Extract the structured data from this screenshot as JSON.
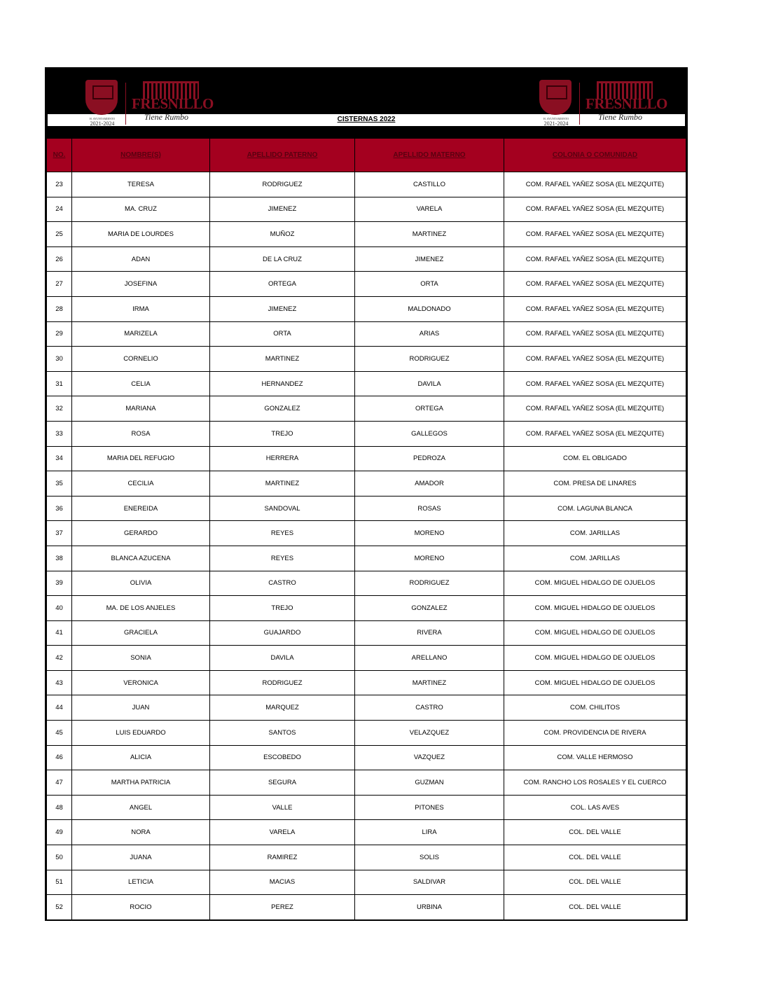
{
  "header": {
    "title": "CISTERNAS 2022",
    "logo_text": "FRESNILLO",
    "logo_tagline": "Tiene Rumbo",
    "logo_ayto": "H. AYUNTAMIENTO",
    "logo_years": "2021-2024",
    "colors": {
      "header_bg": "#000000",
      "column_header_bg": "#a4001f",
      "brand": "#8a0f22"
    }
  },
  "table": {
    "columns": [
      "NO.",
      "NOMBRE(S)",
      "APELLIDO PATERNO",
      "APELLIDO MATERNO",
      "COLONIA O COMUNIDAD"
    ],
    "rows": [
      [
        "23",
        "TERESA",
        "RODRIGUEZ",
        "CASTILLO",
        "COM. RAFAEL YAÑEZ SOSA (EL MEZQUITE)"
      ],
      [
        "24",
        "MA. CRUZ",
        "JIMENEZ",
        "VARELA",
        "COM. RAFAEL YAÑEZ SOSA (EL MEZQUITE)"
      ],
      [
        "25",
        "MARIA DE LOURDES",
        "MUÑOZ",
        "MARTINEZ",
        "COM. RAFAEL YAÑEZ SOSA (EL MEZQUITE)"
      ],
      [
        "26",
        "ADAN",
        "DE LA CRUZ",
        "JIMENEZ",
        "COM. RAFAEL YAÑEZ SOSA (EL MEZQUITE)"
      ],
      [
        "27",
        "JOSEFINA",
        "ORTEGA",
        "ORTA",
        "COM. RAFAEL YAÑEZ SOSA (EL MEZQUITE)"
      ],
      [
        "28",
        "IRMA",
        "JIMENEZ",
        "MALDONADO",
        "COM. RAFAEL YAÑEZ SOSA (EL MEZQUITE)"
      ],
      [
        "29",
        "MARIZELA",
        "ORTA",
        "ARIAS",
        "COM. RAFAEL YAÑEZ SOSA (EL MEZQUITE)"
      ],
      [
        "30",
        "CORNELIO",
        "MARTINEZ",
        "RODRIGUEZ",
        "COM. RAFAEL YAÑEZ SOSA (EL MEZQUITE)"
      ],
      [
        "31",
        "CELIA",
        "HERNANDEZ",
        "DAVILA",
        "COM. RAFAEL YAÑEZ SOSA (EL MEZQUITE)"
      ],
      [
        "32",
        "MARIANA",
        "GONZALEZ",
        "ORTEGA",
        "COM. RAFAEL YAÑEZ SOSA (EL MEZQUITE)"
      ],
      [
        "33",
        "ROSA",
        "TREJO",
        "GALLEGOS",
        "COM. RAFAEL YAÑEZ SOSA (EL MEZQUITE)"
      ],
      [
        "34",
        "MARIA DEL REFUGIO",
        "HERRERA",
        "PEDROZA",
        "COM. EL OBLIGADO"
      ],
      [
        "35",
        "CECILIA",
        "MARTINEZ",
        "AMADOR",
        "COM. PRESA DE LINARES"
      ],
      [
        "36",
        "ENEREIDA",
        "SANDOVAL",
        "ROSAS",
        "COM. LAGUNA BLANCA"
      ],
      [
        "37",
        "GERARDO",
        "REYES",
        "MORENO",
        "COM. JARILLAS"
      ],
      [
        "38",
        "BLANCA AZUCENA",
        "REYES",
        "MORENO",
        "COM. JARILLAS"
      ],
      [
        "39",
        "OLIVIA",
        "CASTRO",
        "RODRIGUEZ",
        "COM. MIGUEL HIDALGO DE OJUELOS"
      ],
      [
        "40",
        "MA. DE LOS ANJELES",
        "TREJO",
        "GONZALEZ",
        "COM. MIGUEL HIDALGO DE OJUELOS"
      ],
      [
        "41",
        "GRACIELA",
        "GUAJARDO",
        "RIVERA",
        "COM. MIGUEL HIDALGO DE OJUELOS"
      ],
      [
        "42",
        "SONIA",
        "DAVILA",
        "ARELLANO",
        "COM. MIGUEL HIDALGO DE OJUELOS"
      ],
      [
        "43",
        "VERONICA",
        "RODRIGUEZ",
        "MARTINEZ",
        "COM. MIGUEL HIDALGO DE OJUELOS"
      ],
      [
        "44",
        "JUAN",
        "MARQUEZ",
        "CASTRO",
        "COM. CHILITOS"
      ],
      [
        "45",
        "LUIS EDUARDO",
        "SANTOS",
        "VELAZQUEZ",
        "COM. PROVIDENCIA DE RIVERA"
      ],
      [
        "46",
        "ALICIA",
        "ESCOBEDO",
        "VAZQUEZ",
        "COM. VALLE HERMOSO"
      ],
      [
        "47",
        "MARTHA PATRICIA",
        "SEGURA",
        "GUZMAN",
        "COM. RANCHO LOS ROSALES Y EL CUERCO"
      ],
      [
        "48",
        "ANGEL",
        "VALLE",
        "PITONES",
        "COL. LAS AVES"
      ],
      [
        "49",
        "NORA",
        "VARELA",
        "LIRA",
        "COL. DEL VALLE"
      ],
      [
        "50",
        "JUANA",
        "RAMIREZ",
        "SOLIS",
        "COL. DEL VALLE"
      ],
      [
        "51",
        "LETICIA",
        "MACIAS",
        "SALDIVAR",
        "COL. DEL VALLE"
      ],
      [
        "52",
        "ROCIO",
        "PEREZ",
        "URBINA",
        "COL. DEL VALLE"
      ]
    ]
  }
}
